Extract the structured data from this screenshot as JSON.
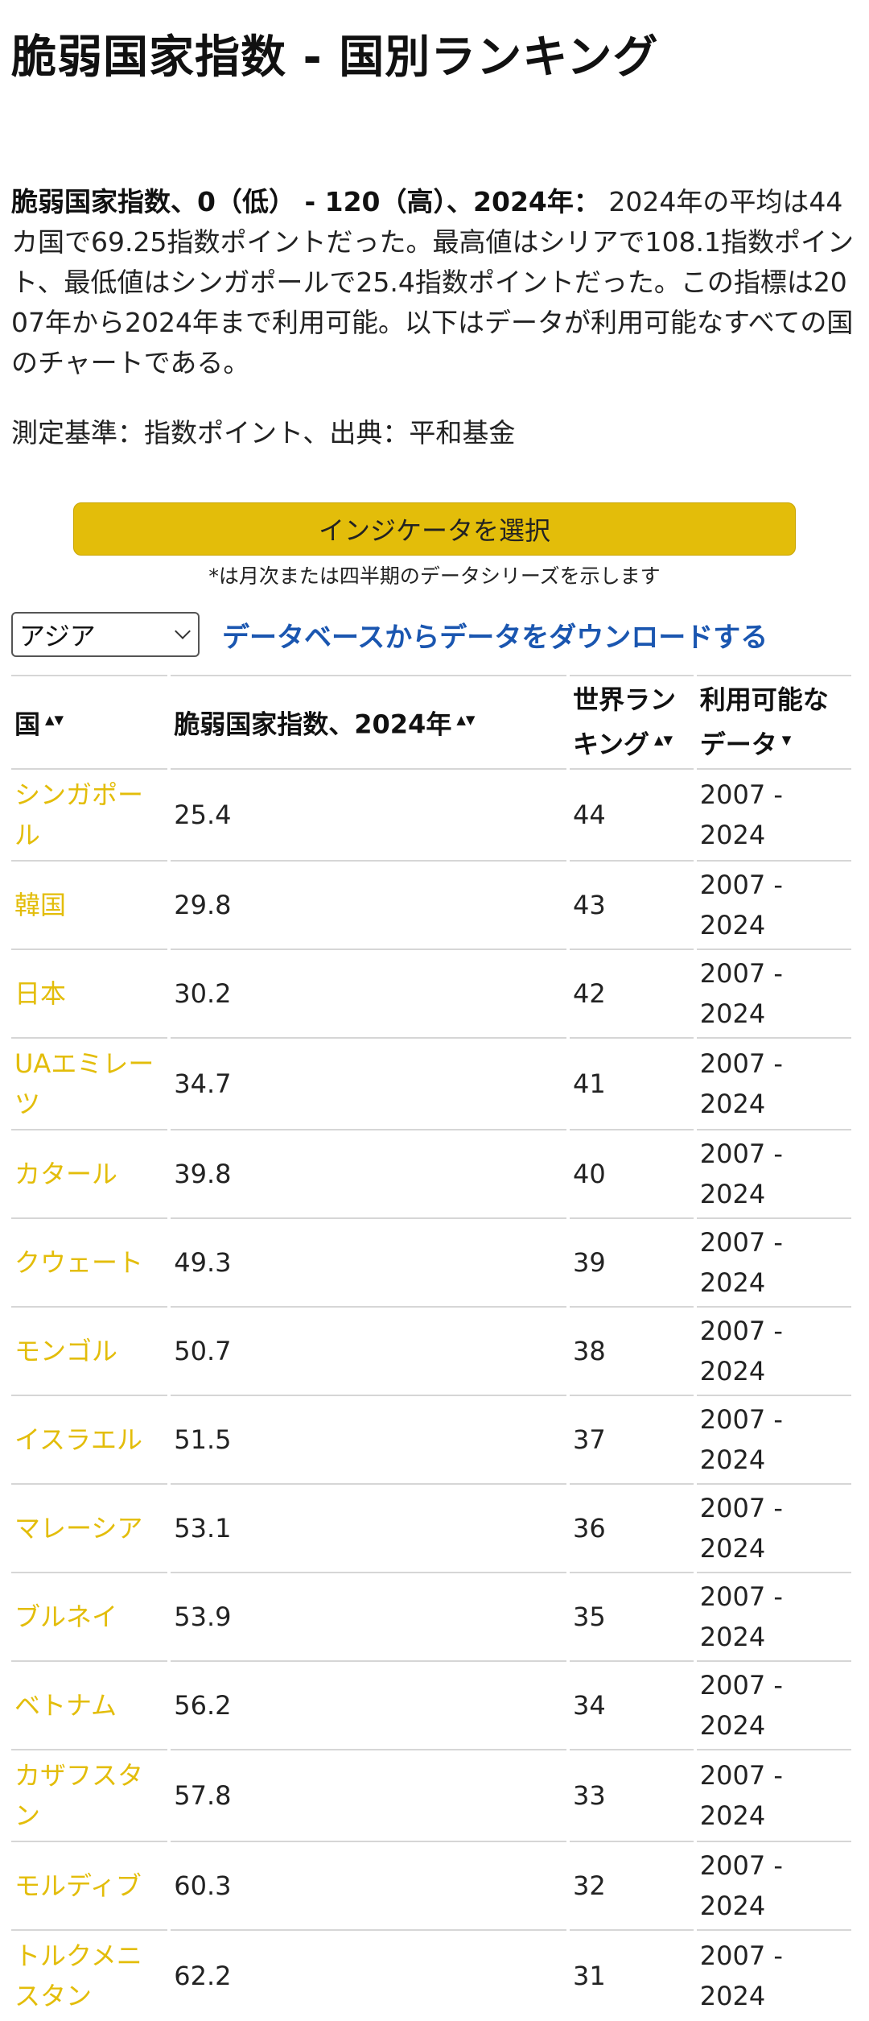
{
  "page": {
    "title": "脆弱国家指数 - 国別ランキング",
    "description_bold": "脆弱国家指数、0（低） - 120（高）、2024年：",
    "description_text": " 2024年の平均は44カ国で69.25指数ポイントだった。最高値はシリアで108.1指数ポイント、最低値はシンガポールで25.4指数ポイントだった。この指標は2007年から2024年まで利用可能。以下はデータが利用可能なすべての国のチャートである。",
    "measure": "測定基準：指数ポイント、出典：平和基金"
  },
  "indicator": {
    "button_label": "インジケータを選択",
    "note": "*は月次または四半期のデータシリーズを示します"
  },
  "controls": {
    "region_selected": "アジア",
    "download_label": "データベースからデータをダウンロードする"
  },
  "table": {
    "headers": {
      "country": "国",
      "value": "脆弱国家指数、2024年",
      "rank": "世界ランキング",
      "avail": "利用可能なデータ"
    },
    "sort_icons": {
      "both": "▲▼",
      "down": "▼"
    },
    "rows": [
      {
        "country": "シンガポール",
        "value": "25.4",
        "rank": "44",
        "avail": "2007 - 2024"
      },
      {
        "country": "韓国",
        "value": "29.8",
        "rank": "43",
        "avail": "2007 - 2024"
      },
      {
        "country": "日本",
        "value": "30.2",
        "rank": "42",
        "avail": "2007 - 2024"
      },
      {
        "country": "UAエミレーツ",
        "value": "34.7",
        "rank": "41",
        "avail": "2007 - 2024"
      },
      {
        "country": "カタール",
        "value": "39.8",
        "rank": "40",
        "avail": "2007 - 2024"
      },
      {
        "country": "クウェート",
        "value": "49.3",
        "rank": "39",
        "avail": "2007 - 2024"
      },
      {
        "country": "モンゴル",
        "value": "50.7",
        "rank": "38",
        "avail": "2007 - 2024"
      },
      {
        "country": "イスラエル",
        "value": "51.5",
        "rank": "37",
        "avail": "2007 - 2024"
      },
      {
        "country": "マレーシア",
        "value": "53.1",
        "rank": "36",
        "avail": "2007 - 2024"
      },
      {
        "country": "ブルネイ",
        "value": "53.9",
        "rank": "35",
        "avail": "2007 - 2024"
      },
      {
        "country": "ベトナム",
        "value": "56.2",
        "rank": "34",
        "avail": "2007 - 2024"
      },
      {
        "country": "カザフスタン",
        "value": "57.8",
        "rank": "33",
        "avail": "2007 - 2024"
      },
      {
        "country": "モルディブ",
        "value": "60.3",
        "rank": "32",
        "avail": "2007 - 2024"
      },
      {
        "country": "トルクメニスタン",
        "value": "62.2",
        "rank": "31",
        "avail": "2007 - 2024"
      }
    ]
  }
}
